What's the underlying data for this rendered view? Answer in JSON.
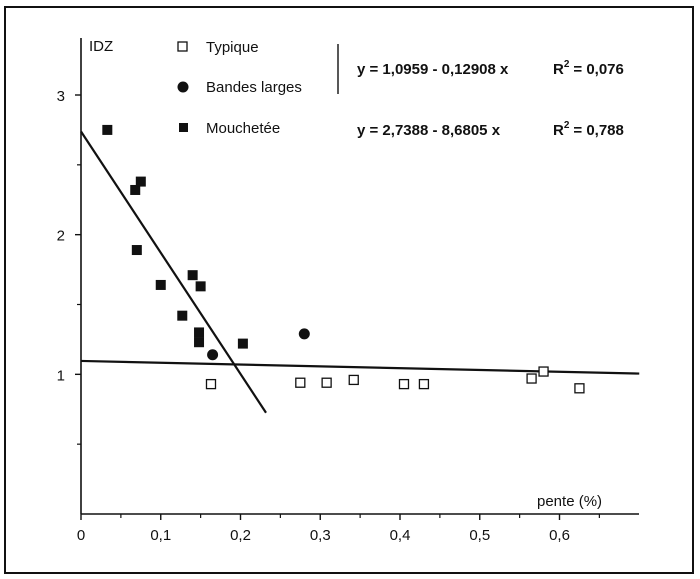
{
  "chart_data": {
    "type": "scatter",
    "ylabel": "IDZ",
    "xlabel": "pente (%)",
    "xlim": [
      0,
      0.7
    ],
    "ylim": [
      0,
      3.3
    ],
    "x_ticks": [
      {
        "v": 0,
        "label": "0"
      },
      {
        "v": 0.1,
        "label": "0,1"
      },
      {
        "v": 0.2,
        "label": "0,2"
      },
      {
        "v": 0.3,
        "label": "0,3"
      },
      {
        "v": 0.4,
        "label": "0,4"
      },
      {
        "v": 0.5,
        "label": "0,5"
      },
      {
        "v": 0.6,
        "label": "0,6"
      }
    ],
    "y_ticks": [
      {
        "v": 1,
        "label": "1"
      },
      {
        "v": 2,
        "label": "2"
      },
      {
        "v": 3,
        "label": "3"
      }
    ],
    "grid": false,
    "legend_position": "top",
    "series": [
      {
        "name": "Typique",
        "marker": "open-square",
        "color": "#111111",
        "points": [
          [
            0.163,
            0.93
          ],
          [
            0.275,
            0.94
          ],
          [
            0.308,
            0.94
          ],
          [
            0.342,
            0.96
          ],
          [
            0.405,
            0.93
          ],
          [
            0.43,
            0.93
          ],
          [
            0.565,
            0.97
          ],
          [
            0.58,
            1.02
          ],
          [
            0.625,
            0.9
          ]
        ]
      },
      {
        "name": "Bandes larges",
        "marker": "filled-circle",
        "color": "#111111",
        "points": [
          [
            0.165,
            1.14
          ],
          [
            0.28,
            1.29
          ]
        ]
      },
      {
        "name": "Mouchetée",
        "marker": "filled-square",
        "color": "#111111",
        "points": [
          [
            0.033,
            2.75
          ],
          [
            0.068,
            2.32
          ],
          [
            0.075,
            2.38
          ],
          [
            0.07,
            1.89
          ],
          [
            0.1,
            1.64
          ],
          [
            0.127,
            1.42
          ],
          [
            0.14,
            1.71
          ],
          [
            0.15,
            1.63
          ],
          [
            0.148,
            1.3
          ],
          [
            0.148,
            1.23
          ],
          [
            0.203,
            1.22
          ]
        ]
      }
    ],
    "fit_lines": [
      {
        "equation": "y = 1,0959 - 0,12908 x",
        "r2_label": "R",
        "r2_exp": "2",
        "r2_value": "= 0,076",
        "intercept": 1.0959,
        "slope": -0.12908,
        "x_range": [
          0,
          0.7
        ]
      },
      {
        "equation": "y = 2,7388 - 8,6805 x",
        "r2_label": "R",
        "r2_exp": "2",
        "r2_value": "= 0,788",
        "intercept": 2.7388,
        "slope": -8.6805,
        "x_range": [
          0,
          0.232
        ]
      }
    ]
  }
}
